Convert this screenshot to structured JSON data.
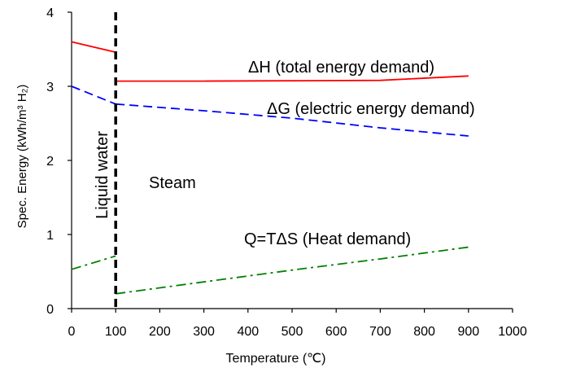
{
  "chart_data": {
    "type": "line",
    "xlabel": "Temperature (℃)",
    "ylabel": "Spec. Energy (kWh/m³ H₂)",
    "xlim": [
      0,
      1000
    ],
    "ylim": [
      0,
      4
    ],
    "x_ticks": [
      "0",
      "100",
      "200",
      "300",
      "400",
      "500",
      "600",
      "700",
      "800",
      "900",
      "1000"
    ],
    "y_ticks": [
      "0",
      "1",
      "2",
      "3",
      "4"
    ],
    "grid": false,
    "legend": "none",
    "series": [
      {
        "name": "ΔH (total energy demand)",
        "color": "#ff0000",
        "dash": "solid",
        "segments": [
          [
            [
              0,
              3.6
            ],
            [
              100,
              3.46
            ]
          ],
          [
            [
              100,
              3.07
            ],
            [
              300,
              3.07
            ],
            [
              500,
              3.075
            ],
            [
              700,
              3.08
            ],
            [
              900,
              3.14
            ]
          ]
        ]
      },
      {
        "name": "ΔG (electric energy demand)",
        "color": "#0000ff",
        "dash": "dash",
        "segments": [
          [
            [
              0,
              3.0
            ],
            [
              100,
              2.76
            ]
          ],
          [
            [
              100,
              2.76
            ],
            [
              300,
              2.67
            ],
            [
              500,
              2.57
            ],
            [
              700,
              2.44
            ],
            [
              900,
              2.33
            ]
          ]
        ]
      },
      {
        "name": "Q=TΔS (Heat demand)",
        "color": "#008000",
        "dash": "dashdot",
        "segments": [
          [
            [
              0,
              0.53
            ],
            [
              100,
              0.71
            ]
          ],
          [
            [
              100,
              0.2
            ],
            [
              300,
              0.36
            ],
            [
              500,
              0.52
            ],
            [
              700,
              0.67
            ],
            [
              900,
              0.83
            ]
          ]
        ]
      }
    ],
    "vline": {
      "x": 100,
      "color": "#000000"
    },
    "annotations": {
      "liquid_water": "Liquid water",
      "steam": "Steam"
    }
  }
}
